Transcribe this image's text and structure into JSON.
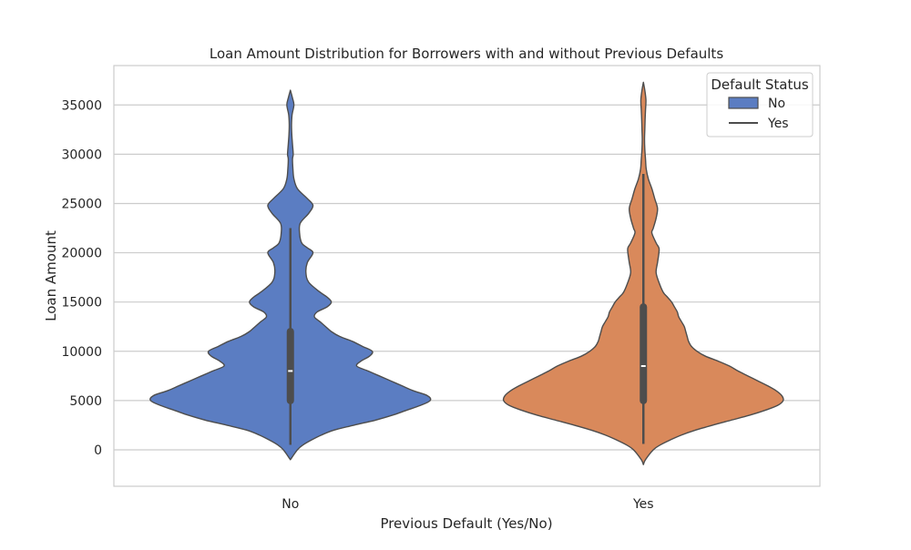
{
  "chart_data": {
    "type": "violin",
    "title": "Loan Amount Distribution for Borrowers with and without Previous Defaults",
    "xlabel": "Previous Default (Yes/No)",
    "ylabel": "Loan Amount",
    "categories": [
      "No",
      "Yes"
    ],
    "ylim": [
      -3700,
      39000
    ],
    "yticks": [
      0,
      5000,
      10000,
      15000,
      20000,
      25000,
      30000,
      35000
    ],
    "grid": "horizontal",
    "legend": {
      "title": "Default Status",
      "position": "top-right",
      "entries": [
        {
          "label": "No",
          "swatch": "patch",
          "color": "#5b7dc2"
        },
        {
          "label": "Yes",
          "swatch": "line",
          "color": "#4d4d4d"
        }
      ]
    },
    "series": [
      {
        "category": "No",
        "color": "#5b7dc2",
        "density_profile": [
          [
            -1000,
            0.0
          ],
          [
            0,
            0.05
          ],
          [
            500,
            0.09
          ],
          [
            1000,
            0.15
          ],
          [
            1500,
            0.22
          ],
          [
            2000,
            0.31
          ],
          [
            2500,
            0.45
          ],
          [
            3000,
            0.6
          ],
          [
            3500,
            0.72
          ],
          [
            4000,
            0.82
          ],
          [
            4500,
            0.92
          ],
          [
            5000,
            0.99
          ],
          [
            5500,
            0.97
          ],
          [
            6000,
            0.87
          ],
          [
            6500,
            0.79
          ],
          [
            7000,
            0.71
          ],
          [
            7500,
            0.63
          ],
          [
            8000,
            0.55
          ],
          [
            8500,
            0.47
          ],
          [
            9000,
            0.5
          ],
          [
            9500,
            0.56
          ],
          [
            10000,
            0.58
          ],
          [
            10500,
            0.51
          ],
          [
            11000,
            0.44
          ],
          [
            11500,
            0.35
          ],
          [
            12000,
            0.29
          ],
          [
            12500,
            0.25
          ],
          [
            13000,
            0.21
          ],
          [
            13500,
            0.17
          ],
          [
            14000,
            0.19
          ],
          [
            14500,
            0.26
          ],
          [
            15000,
            0.29
          ],
          [
            15500,
            0.26
          ],
          [
            16000,
            0.21
          ],
          [
            17000,
            0.13
          ],
          [
            18000,
            0.11
          ],
          [
            19000,
            0.12
          ],
          [
            20000,
            0.16
          ],
          [
            20500,
            0.12
          ],
          [
            21000,
            0.08
          ],
          [
            22000,
            0.065
          ],
          [
            23000,
            0.07
          ],
          [
            24000,
            0.13
          ],
          [
            24800,
            0.16
          ],
          [
            25500,
            0.12
          ],
          [
            26500,
            0.05
          ],
          [
            27500,
            0.025
          ],
          [
            28500,
            0.018
          ],
          [
            29500,
            0.015
          ],
          [
            30000,
            0.02
          ],
          [
            31000,
            0.015
          ],
          [
            32000,
            0.01
          ],
          [
            33000,
            0.008
          ],
          [
            34000,
            0.012
          ],
          [
            35000,
            0.025
          ],
          [
            35700,
            0.015
          ],
          [
            36500,
            0.0
          ]
        ],
        "whisker_range": [
          500,
          22500
        ],
        "quartiles": [
          5000,
          12000
        ],
        "median": 8000
      },
      {
        "category": "Yes",
        "color": "#d9895b",
        "density_profile": [
          [
            -1500,
            0.0
          ],
          [
            -1000,
            0.015
          ],
          [
            0,
            0.07
          ],
          [
            500,
            0.12
          ],
          [
            1000,
            0.19
          ],
          [
            1500,
            0.27
          ],
          [
            2000,
            0.37
          ],
          [
            2500,
            0.49
          ],
          [
            3000,
            0.62
          ],
          [
            3500,
            0.75
          ],
          [
            4000,
            0.86
          ],
          [
            4500,
            0.95
          ],
          [
            5000,
            0.99
          ],
          [
            5500,
            0.98
          ],
          [
            6000,
            0.94
          ],
          [
            6500,
            0.88
          ],
          [
            7000,
            0.81
          ],
          [
            7500,
            0.74
          ],
          [
            8000,
            0.67
          ],
          [
            8500,
            0.61
          ],
          [
            9000,
            0.53
          ],
          [
            9500,
            0.44
          ],
          [
            10000,
            0.38
          ],
          [
            10500,
            0.34
          ],
          [
            11000,
            0.32
          ],
          [
            11500,
            0.31
          ],
          [
            12000,
            0.3
          ],
          [
            12500,
            0.29
          ],
          [
            13000,
            0.27
          ],
          [
            13500,
            0.25
          ],
          [
            14000,
            0.24
          ],
          [
            14500,
            0.22
          ],
          [
            15000,
            0.2
          ],
          [
            15500,
            0.17
          ],
          [
            16000,
            0.14
          ],
          [
            17000,
            0.11
          ],
          [
            18000,
            0.09
          ],
          [
            19000,
            0.1
          ],
          [
            20000,
            0.11
          ],
          [
            20500,
            0.11
          ],
          [
            21000,
            0.09
          ],
          [
            22000,
            0.06
          ],
          [
            22500,
            0.07
          ],
          [
            23500,
            0.09
          ],
          [
            24500,
            0.1
          ],
          [
            25500,
            0.08
          ],
          [
            26500,
            0.06
          ],
          [
            27500,
            0.035
          ],
          [
            28500,
            0.02
          ],
          [
            29500,
            0.015
          ],
          [
            30500,
            0.01
          ],
          [
            31500,
            0.008
          ],
          [
            32500,
            0.01
          ],
          [
            33500,
            0.012
          ],
          [
            34500,
            0.015
          ],
          [
            35500,
            0.018
          ],
          [
            36500,
            0.01
          ],
          [
            37300,
            0.0
          ]
        ],
        "whisker_range": [
          600,
          28000
        ],
        "quartiles": [
          5000,
          14500
        ],
        "median": 8500
      }
    ]
  }
}
